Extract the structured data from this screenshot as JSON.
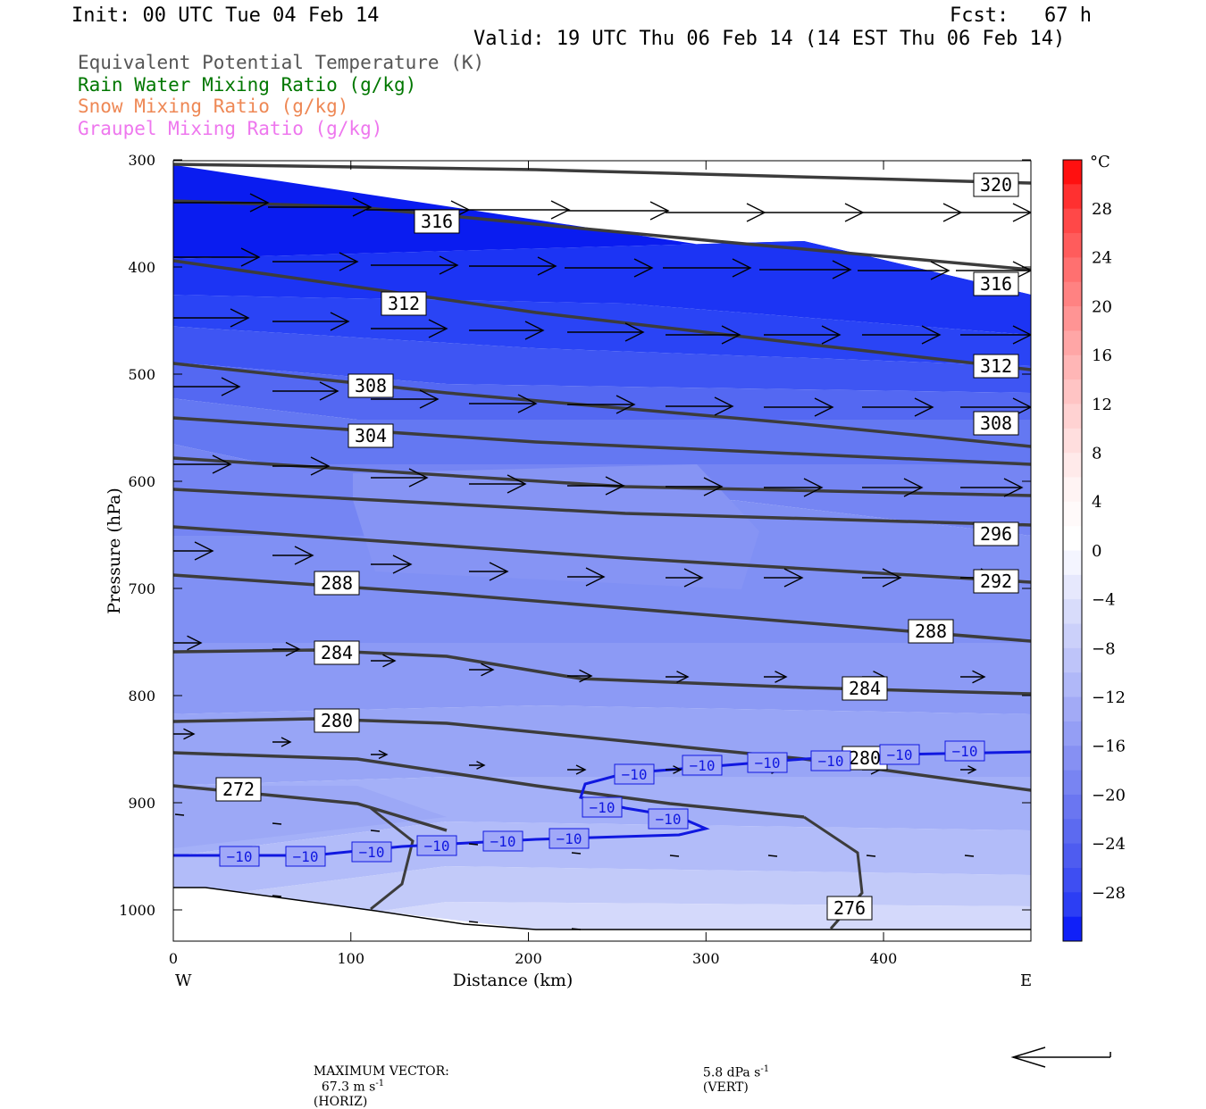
{
  "header": {
    "init": "Init: 00 UTC Tue 04 Feb 14",
    "fcst": "Fcst:   67 h",
    "valid": "Valid: 19 UTC Thu 06 Feb 14 (14 EST Thu 06 Feb 14)"
  },
  "legend": [
    {
      "label": "Equivalent Potential Temperature (K)",
      "color": "#555555"
    },
    {
      "label": "Rain Water Mixing Ratio (g/kg)",
      "color": "#007700"
    },
    {
      "label": "Snow Mixing Ratio (g/kg)",
      "color": "#ee8855"
    },
    {
      "label": "Graupel Mixing Ratio (g/kg)",
      "color": "#ee77ee"
    }
  ],
  "chart_data": {
    "type": "contour",
    "xlabel": "Distance (km)",
    "ylabel": "Pressure (hPa)",
    "x_ticks": [
      0,
      100,
      200,
      300,
      400
    ],
    "xlim": [
      0,
      483
    ],
    "y_ticks": [
      300,
      400,
      500,
      600,
      700,
      800,
      900,
      1000
    ],
    "ylim": [
      300,
      1030
    ],
    "x_end_labels": {
      "left": "W",
      "right": "E"
    },
    "colorbar": {
      "unit": "°C",
      "tick_labels": [
        "28",
        "24",
        "20",
        "16",
        "12",
        "8",
        "4",
        "0",
        "−4",
        "−8",
        "−12",
        "−16",
        "−20",
        "−24",
        "−28"
      ],
      "levels": [
        -32,
        -30,
        -28,
        -26,
        -24,
        -22,
        -20,
        -18,
        -16,
        -14,
        -12,
        -10,
        -8,
        -6,
        -4,
        -2,
        0,
        2,
        4,
        6,
        8,
        10,
        12,
        14,
        16,
        18,
        20,
        22,
        24,
        26,
        28,
        30,
        32
      ]
    },
    "theta_e_labels": [
      "320",
      "316",
      "316",
      "312",
      "312",
      "308",
      "308",
      "304",
      "296",
      "292",
      "288",
      "288",
      "284",
      "284",
      "280",
      "280",
      "272",
      "276"
    ],
    "temp_contour_label": "−10",
    "temp_contour_label_count": 14
  },
  "footer": {
    "max_vector_label": "MAXIMUM VECTOR:",
    "horiz": "67.3 m s",
    "horiz_exp": "-1",
    "horiz_tag": "(HORIZ)",
    "vert": "5.8 dPa s",
    "vert_exp": "-1",
    "vert_tag": "(VERT)"
  }
}
